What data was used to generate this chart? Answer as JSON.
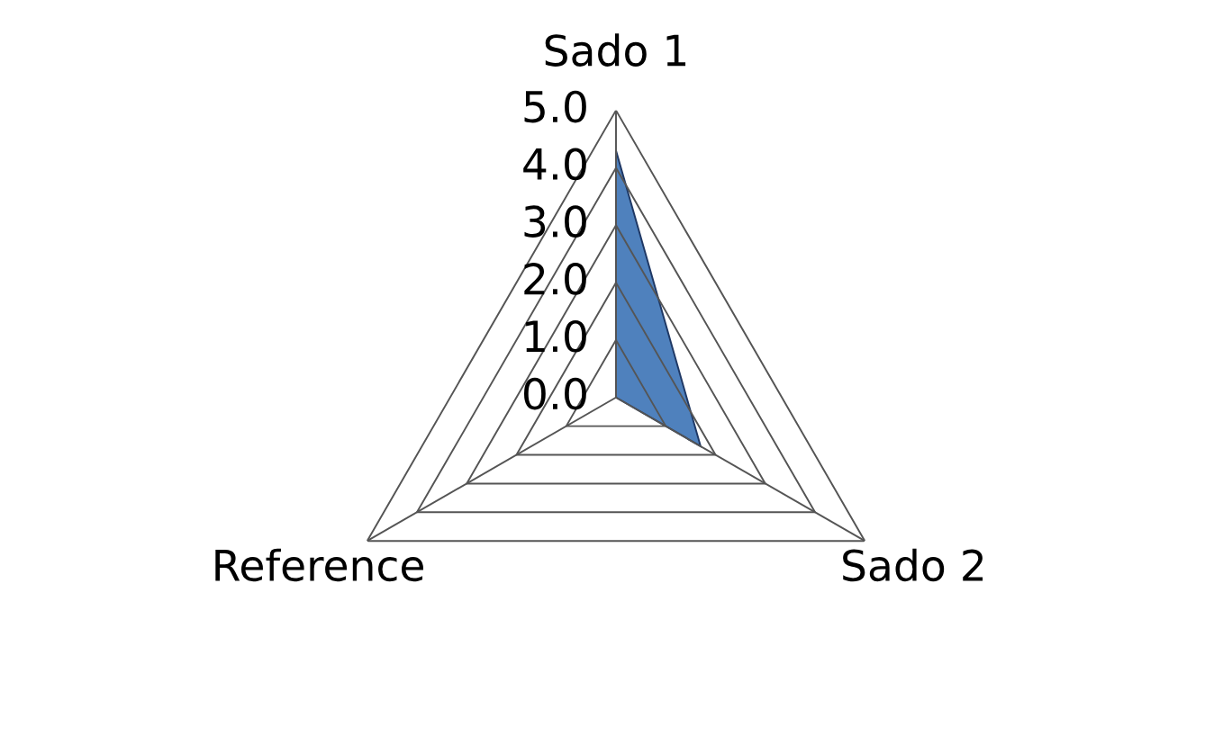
{
  "chart_data": {
    "type": "radar",
    "categories": [
      "Sado 1",
      "Sado 2",
      "Reference"
    ],
    "series": [
      {
        "color": "#4f81bd",
        "values": [
          4.3,
          1.7,
          0
        ]
      }
    ],
    "ylim": [
      0,
      5
    ],
    "yticks": [
      {
        "value": 0,
        "label": "0.0"
      },
      {
        "value": 1,
        "label": "1.0"
      },
      {
        "value": 2,
        "label": "2.0"
      },
      {
        "value": 3,
        "label": "3.0"
      },
      {
        "value": 4,
        "label": "4.0"
      },
      {
        "value": 5,
        "label": "5.0"
      }
    ],
    "grid": true,
    "legend": false
  }
}
